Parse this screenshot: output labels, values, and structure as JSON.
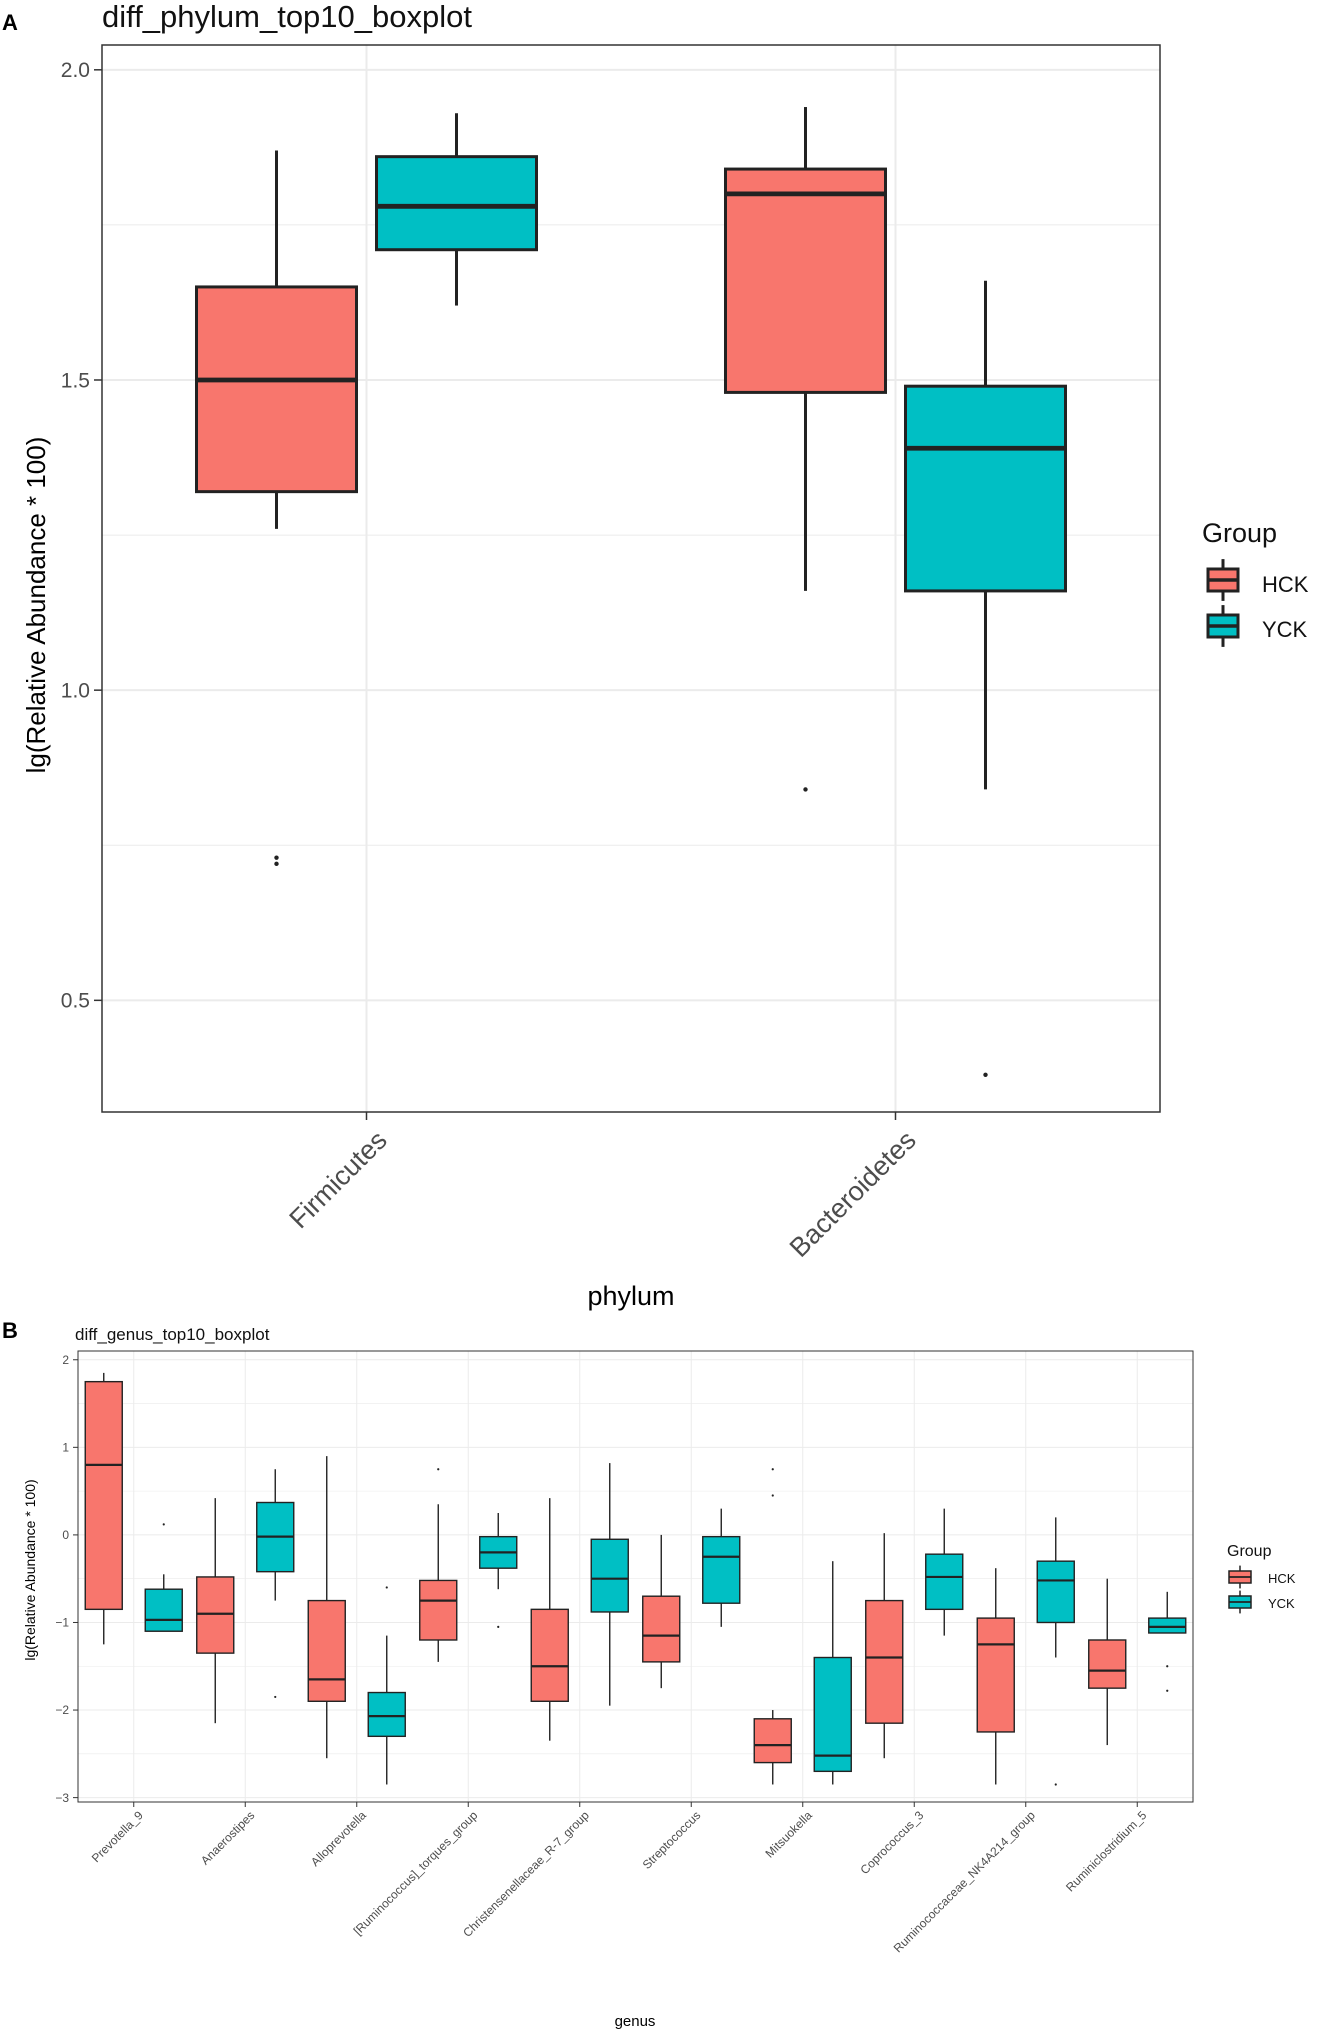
{
  "colors": {
    "HCK": "#F8766D",
    "YCK": "#00BFC4",
    "grid": "#EBEBEB",
    "border": "#333333"
  },
  "chart_data": [
    {
      "panel_label": "A",
      "type": "boxplot",
      "title": "diff_phylum_top10_boxplot",
      "xlabel": "phylum",
      "ylabel": "lg(Relative Abundance * 100)",
      "ylim": [
        0.32,
        2.04
      ],
      "yticks": [
        0.5,
        1.0,
        1.5,
        2.0
      ],
      "ytick_labels": [
        "0.5",
        "1.0",
        "1.5",
        "2.0"
      ],
      "legend": {
        "title": "Group",
        "position": "right",
        "entries": [
          "HCK",
          "YCK"
        ]
      },
      "categories": [
        "Firmicutes",
        "Bacteroidetes"
      ],
      "series": [
        {
          "name": "HCK",
          "boxes": [
            {
              "low": 1.26,
              "q1": 1.32,
              "median": 1.5,
              "q3": 1.65,
              "high": 1.87,
              "outliers": [
                0.73,
                0.72
              ]
            },
            {
              "low": 1.16,
              "q1": 1.48,
              "median": 1.8,
              "q3": 1.84,
              "high": 1.94,
              "outliers": [
                0.84
              ]
            }
          ]
        },
        {
          "name": "YCK",
          "boxes": [
            {
              "low": 1.62,
              "q1": 1.71,
              "median": 1.78,
              "q3": 1.86,
              "high": 1.93,
              "outliers": []
            },
            {
              "low": 0.84,
              "q1": 1.16,
              "median": 1.39,
              "q3": 1.49,
              "high": 1.66,
              "outliers": [
                0.38
              ]
            }
          ]
        }
      ]
    },
    {
      "panel_label": "B",
      "type": "boxplot",
      "title": "diff_genus_top10_boxplot",
      "xlabel": "genus",
      "ylabel": "lg(Relative Abundance * 100)",
      "ylim": [
        -3.05,
        2.1
      ],
      "yticks": [
        -3,
        -2,
        -1,
        0,
        1,
        2
      ],
      "ytick_labels": [
        "−3",
        "−2",
        "−1",
        "0",
        "1",
        "2"
      ],
      "legend": {
        "title": "Group",
        "position": "right",
        "entries": [
          "HCK",
          "YCK"
        ]
      },
      "categories": [
        "Prevotella_9",
        "Anaerostipes",
        "Alloprevotella",
        "[Ruminococcus]_torques_group",
        "Christensenellaceae_R-7_group",
        "Streptococcus",
        "Mitsuokella",
        "Coprococcus_3",
        "Ruminococcaceae_NK4A214_group",
        "Ruminiclostridium_5"
      ],
      "series": [
        {
          "name": "HCK",
          "boxes": [
            {
              "low": -1.25,
              "q1": -0.85,
              "median": 0.8,
              "q3": 1.75,
              "high": 1.85,
              "outliers": []
            },
            {
              "low": -2.15,
              "q1": -1.35,
              "median": -0.9,
              "q3": -0.48,
              "high": 0.42,
              "outliers": []
            },
            {
              "low": -2.55,
              "q1": -1.9,
              "median": -1.65,
              "q3": -0.75,
              "high": 0.9,
              "outliers": []
            },
            {
              "low": -1.45,
              "q1": -1.2,
              "median": -0.75,
              "q3": -0.52,
              "high": 0.35,
              "outliers": [
                0.75
              ]
            },
            {
              "low": -2.35,
              "q1": -1.9,
              "median": -1.5,
              "q3": -0.85,
              "high": 0.42,
              "outliers": []
            },
            {
              "low": -1.75,
              "q1": -1.45,
              "median": -1.15,
              "q3": -0.7,
              "high": 0.0,
              "outliers": []
            },
            {
              "low": -2.85,
              "q1": -2.6,
              "median": -2.4,
              "q3": -2.1,
              "high": -2.0,
              "outliers": [
                0.75,
                0.45
              ]
            },
            {
              "low": -2.55,
              "q1": -2.15,
              "median": -1.4,
              "q3": -0.75,
              "high": 0.02,
              "outliers": []
            },
            {
              "low": -2.85,
              "q1": -2.25,
              "median": -1.25,
              "q3": -0.95,
              "high": -0.38,
              "outliers": []
            },
            {
              "low": -2.4,
              "q1": -1.75,
              "median": -1.55,
              "q3": -1.2,
              "high": -0.5,
              "outliers": []
            }
          ]
        },
        {
          "name": "YCK",
          "boxes": [
            {
              "low": -1.1,
              "q1": -1.1,
              "median": -0.97,
              "q3": -0.62,
              "high": -0.45,
              "outliers": [
                0.12
              ]
            },
            {
              "low": -0.75,
              "q1": -0.42,
              "median": -0.02,
              "q3": 0.37,
              "high": 0.75,
              "outliers": [
                -1.85
              ]
            },
            {
              "low": -2.85,
              "q1": -2.3,
              "median": -2.07,
              "q3": -1.8,
              "high": -1.15,
              "outliers": [
                -0.6
              ]
            },
            {
              "low": -0.62,
              "q1": -0.38,
              "median": -0.2,
              "q3": -0.02,
              "high": 0.25,
              "outliers": [
                -1.05
              ]
            },
            {
              "low": -1.95,
              "q1": -0.88,
              "median": -0.5,
              "q3": -0.05,
              "high": 0.82,
              "outliers": []
            },
            {
              "low": -1.05,
              "q1": -0.78,
              "median": -0.25,
              "q3": -0.02,
              "high": 0.3,
              "outliers": []
            },
            {
              "low": -2.85,
              "q1": -2.7,
              "median": -2.52,
              "q3": -1.4,
              "high": -0.3,
              "outliers": []
            },
            {
              "low": -1.15,
              "q1": -0.85,
              "median": -0.48,
              "q3": -0.22,
              "high": 0.3,
              "outliers": []
            },
            {
              "low": -1.4,
              "q1": -1.0,
              "median": -0.52,
              "q3": -0.3,
              "high": 0.2,
              "outliers": [
                -2.85
              ]
            },
            {
              "low": -1.12,
              "q1": -1.12,
              "median": -1.05,
              "q3": -0.95,
              "high": -0.65,
              "outliers": [
                -1.5,
                -1.78
              ]
            }
          ]
        }
      ]
    }
  ]
}
